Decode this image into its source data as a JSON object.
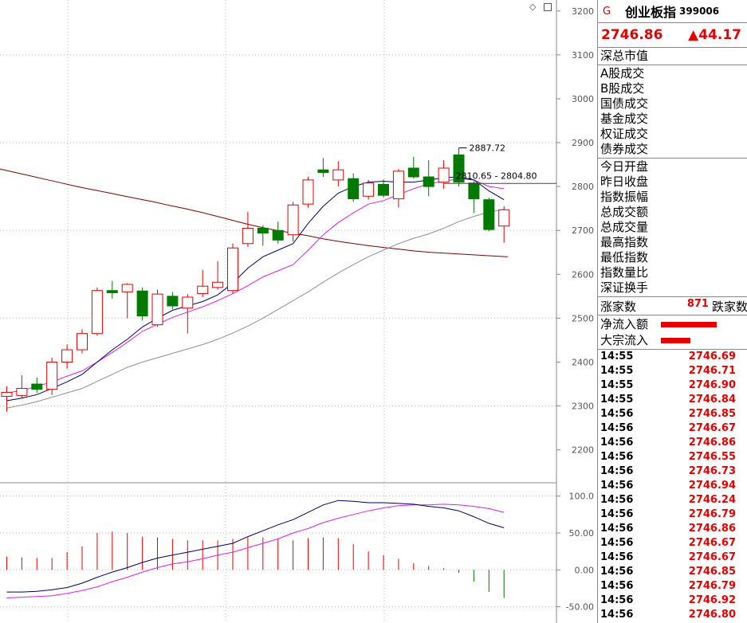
{
  "chart_data": {
    "type": "candlestick",
    "price_axis": {
      "ticks": [
        3200,
        3100,
        3000,
        2900,
        2800,
        2700,
        2600,
        2500,
        2400,
        2300,
        2200
      ],
      "ylim": [
        2125,
        3225
      ]
    },
    "macd_axis": {
      "ticks": [
        "100.0",
        "50.00",
        "0.00",
        "-50.00"
      ],
      "ylim": [
        -72,
        118
      ]
    },
    "candles": [
      {
        "o": 2322,
        "c": 2331,
        "h": 2345,
        "l": 2287
      },
      {
        "o": 2324,
        "c": 2340,
        "h": 2370,
        "l": 2318
      },
      {
        "o": 2350,
        "c": 2338,
        "h": 2365,
        "l": 2330
      },
      {
        "o": 2338,
        "c": 2400,
        "h": 2410,
        "l": 2325
      },
      {
        "o": 2400,
        "c": 2428,
        "h": 2440,
        "l": 2385
      },
      {
        "o": 2428,
        "c": 2465,
        "h": 2475,
        "l": 2420
      },
      {
        "o": 2465,
        "c": 2563,
        "h": 2570,
        "l": 2460
      },
      {
        "o": 2563,
        "c": 2558,
        "h": 2585,
        "l": 2545
      },
      {
        "o": 2560,
        "c": 2577,
        "h": 2580,
        "l": 2500
      },
      {
        "o": 2562,
        "c": 2505,
        "h": 2570,
        "l": 2495
      },
      {
        "o": 2485,
        "c": 2555,
        "h": 2565,
        "l": 2480
      },
      {
        "o": 2550,
        "c": 2528,
        "h": 2560,
        "l": 2520
      },
      {
        "o": 2523,
        "c": 2548,
        "h": 2555,
        "l": 2465
      },
      {
        "o": 2556,
        "c": 2573,
        "h": 2610,
        "l": 2548
      },
      {
        "o": 2570,
        "c": 2582,
        "h": 2630,
        "l": 2565
      },
      {
        "o": 2563,
        "c": 2660,
        "h": 2670,
        "l": 2556
      },
      {
        "o": 2670,
        "c": 2705,
        "h": 2742,
        "l": 2663
      },
      {
        "o": 2705,
        "c": 2694,
        "h": 2712,
        "l": 2665
      },
      {
        "o": 2700,
        "c": 2678,
        "h": 2720,
        "l": 2670
      },
      {
        "o": 2690,
        "c": 2758,
        "h": 2765,
        "l": 2675
      },
      {
        "o": 2760,
        "c": 2815,
        "h": 2822,
        "l": 2752
      },
      {
        "o": 2838,
        "c": 2832,
        "h": 2865,
        "l": 2822
      },
      {
        "o": 2815,
        "c": 2838,
        "h": 2858,
        "l": 2800
      },
      {
        "o": 2818,
        "c": 2772,
        "h": 2830,
        "l": 2765
      },
      {
        "o": 2778,
        "c": 2808,
        "h": 2815,
        "l": 2770
      },
      {
        "o": 2805,
        "c": 2780,
        "h": 2816,
        "l": 2775
      },
      {
        "o": 2772,
        "c": 2835,
        "h": 2840,
        "l": 2752
      },
      {
        "o": 2842,
        "c": 2822,
        "h": 2868,
        "l": 2818
      },
      {
        "o": 2822,
        "c": 2800,
        "h": 2860,
        "l": 2778
      },
      {
        "o": 2810,
        "c": 2842,
        "h": 2860,
        "l": 2795
      },
      {
        "o": 2872,
        "c": 2810,
        "h": 2888,
        "l": 2800
      },
      {
        "o": 2808,
        "c": 2772,
        "h": 2812,
        "l": 2740
      },
      {
        "o": 2770,
        "c": 2702,
        "h": 2775,
        "l": 2698
      },
      {
        "o": 2710,
        "c": 2747,
        "h": 2755,
        "l": 2672
      }
    ],
    "ma_fast": [
      2312,
      2318,
      2326,
      2340,
      2355,
      2372,
      2400,
      2428,
      2452,
      2480,
      2500,
      2518,
      2528,
      2538,
      2553,
      2580,
      2614,
      2640,
      2655,
      2670,
      2716,
      2755,
      2785,
      2800,
      2810,
      2812,
      2810,
      2810,
      2815,
      2820,
      2822,
      2815,
      2790,
      2770
    ],
    "ma_mid": [
      2330,
      2335,
      2345,
      2355,
      2368,
      2380,
      2400,
      2422,
      2445,
      2470,
      2486,
      2502,
      2514,
      2526,
      2540,
      2556,
      2574,
      2594,
      2608,
      2622,
      2655,
      2690,
      2718,
      2740,
      2760,
      2768,
      2782,
      2795,
      2806,
      2812,
      2818,
      2815,
      2800,
      2795
    ],
    "ma_slow": [
      2295,
      2302,
      2310,
      2320,
      2330,
      2340,
      2356,
      2372,
      2388,
      2400,
      2410,
      2420,
      2430,
      2440,
      2452,
      2466,
      2482,
      2500,
      2520,
      2540,
      2560,
      2582,
      2603,
      2622,
      2640,
      2655,
      2670,
      2682,
      2692,
      2705,
      2720,
      2732,
      2742,
      2748
    ],
    "ma_long": [
      2840,
      2832,
      2824,
      2816,
      2808,
      2800,
      2793,
      2786,
      2779,
      2772,
      2765,
      2757,
      2750,
      2742,
      2733,
      2724,
      2715,
      2707,
      2700,
      2694,
      2688,
      2681,
      2675,
      2670,
      2665,
      2661,
      2657,
      2653,
      2650,
      2648,
      2646,
      2644,
      2642,
      2640
    ],
    "macd_bars": [
      18,
      17,
      16,
      16,
      24,
      32,
      50,
      52,
      50,
      45,
      44,
      42,
      40,
      40,
      40,
      42,
      44,
      44,
      42,
      40,
      43,
      44,
      43,
      35,
      25,
      20,
      15,
      9,
      5,
      2,
      -4,
      -16,
      -30,
      -38
    ],
    "macd_dif": [
      -30,
      -30,
      -29,
      -27,
      -24,
      -18,
      -10,
      -3,
      3,
      10,
      16,
      20,
      24,
      28,
      32,
      36,
      45,
      53,
      61,
      68,
      78,
      88,
      94,
      93,
      91,
      91,
      90,
      89,
      86,
      84,
      80,
      72,
      63,
      57
    ],
    "macd_dea": [
      -38,
      -37,
      -36,
      -35,
      -32,
      -28,
      -23,
      -16,
      -10,
      -3,
      3,
      8,
      11,
      15,
      20,
      24,
      30,
      36,
      42,
      50,
      56,
      64,
      70,
      75,
      80,
      84,
      87,
      88,
      88,
      89,
      88,
      86,
      83,
      78
    ],
    "annotations": {
      "peak": "2887.72",
      "range": "2810.65 - 2804.80"
    }
  },
  "header": {
    "badge": "G",
    "name": "创业板指",
    "code": "399006",
    "price": "2746.86",
    "change": "▲44.17"
  },
  "labels_top": [
    "深总市值"
  ],
  "labels_trade": [
    "A股成交",
    "B股成交",
    "国债成交",
    "基金成交",
    "权证成交",
    "债券成交"
  ],
  "labels_stats": [
    "今日开盘",
    "昨日收盘",
    "指数振幅",
    "总成交额",
    "总成交量",
    "最高指数",
    "最低指数",
    "指数量比",
    "深证换手"
  ],
  "breadth": {
    "up_label": "涨家数",
    "up_value": "871",
    "down_label": "跌家数"
  },
  "flows": [
    {
      "label": "净流入额",
      "level": 0.85
    },
    {
      "label": "大宗流入",
      "level": 0.45
    }
  ],
  "ticks": [
    {
      "t": "14:55",
      "p": "2746.69"
    },
    {
      "t": "14:55",
      "p": "2746.71"
    },
    {
      "t": "14:55",
      "p": "2746.90"
    },
    {
      "t": "14:55",
      "p": "2746.84"
    },
    {
      "t": "14:56",
      "p": "2746.85"
    },
    {
      "t": "14:56",
      "p": "2746.67"
    },
    {
      "t": "14:56",
      "p": "2746.86"
    },
    {
      "t": "14:56",
      "p": "2746.55"
    },
    {
      "t": "14:56",
      "p": "2746.73"
    },
    {
      "t": "14:56",
      "p": "2746.94"
    },
    {
      "t": "14:56",
      "p": "2746.24"
    },
    {
      "t": "14:56",
      "p": "2746.79"
    },
    {
      "t": "14:56",
      "p": "2746.86"
    },
    {
      "t": "14:56",
      "p": "2746.67"
    },
    {
      "t": "14:56",
      "p": "2746.67"
    },
    {
      "t": "14:56",
      "p": "2746.85"
    },
    {
      "t": "14:56",
      "p": "2746.79"
    },
    {
      "t": "14:56",
      "p": "2746.92"
    },
    {
      "t": "14:56",
      "p": "2746.80"
    }
  ],
  "colors": {
    "up": "#e60000",
    "down": "#007a00",
    "ma_fast": "#000060",
    "ma_mid": "#e020e0",
    "ma_slow": "#909090",
    "ma_long": "#800000"
  }
}
